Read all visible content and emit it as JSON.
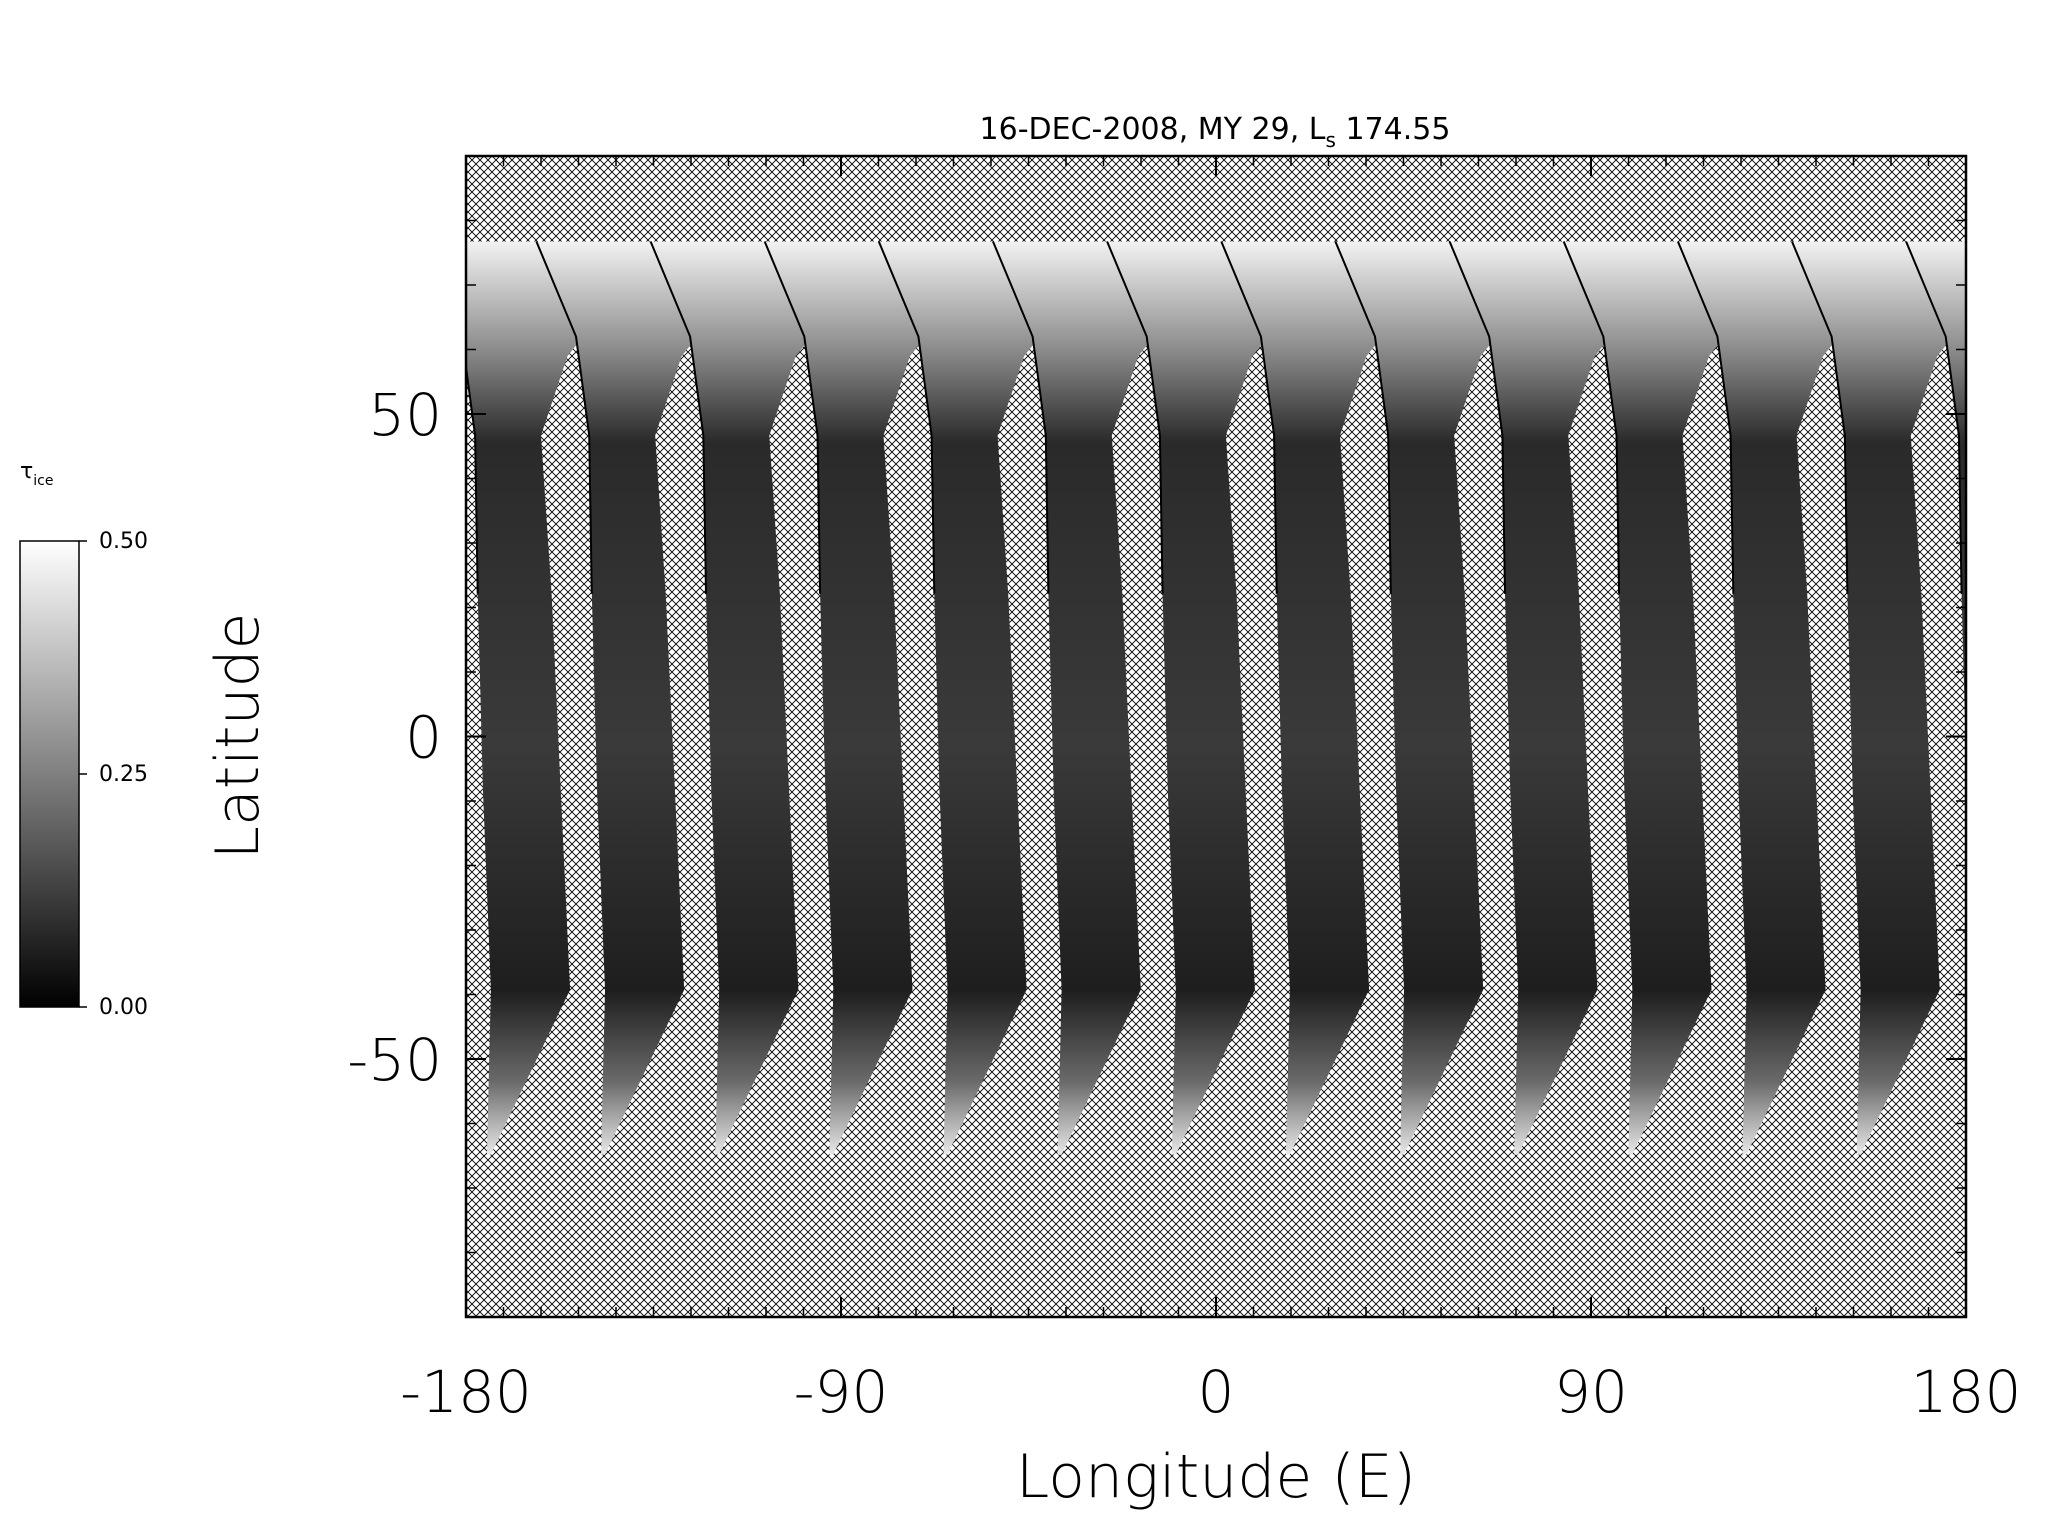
{
  "chart_data": {
    "type": "map",
    "title": [
      "16-DEC-2008, MY 29,  L",
      "s",
      " 174.55"
    ],
    "x_label": "Longitude (E)",
    "y_label": "Latitude",
    "xlim": [
      -180,
      180
    ],
    "ylim": [
      -90,
      90
    ],
    "xticks": [
      -180,
      -90,
      0,
      90,
      180
    ],
    "yticks": [
      -50,
      0,
      50
    ],
    "xminorticks": [
      -171,
      -162,
      -153,
      -144,
      -135,
      -126,
      -117,
      -108,
      -99,
      -81,
      -72,
      -63,
      -54,
      -45,
      -36,
      -27,
      -18,
      -9,
      9,
      18,
      27,
      36,
      45,
      54,
      63,
      72,
      81,
      99,
      108,
      117,
      126,
      135,
      144,
      153,
      162,
      171
    ],
    "yminorticks": [
      -80,
      -70,
      -60,
      -40,
      -30,
      -20,
      -10,
      10,
      20,
      30,
      40,
      60,
      70,
      80
    ],
    "colorbar": {
      "label": [
        "τ",
        "ice"
      ],
      "lim": [
        0,
        0.5
      ],
      "ticks": [
        {
          "value": 0,
          "label": "0.00"
        },
        {
          "value": 0.25,
          "label": "0.25"
        },
        {
          "value": 0.5,
          "label": "0.50"
        }
      ],
      "colors": [
        "#000000",
        "#ffffff"
      ]
    }
  }
}
